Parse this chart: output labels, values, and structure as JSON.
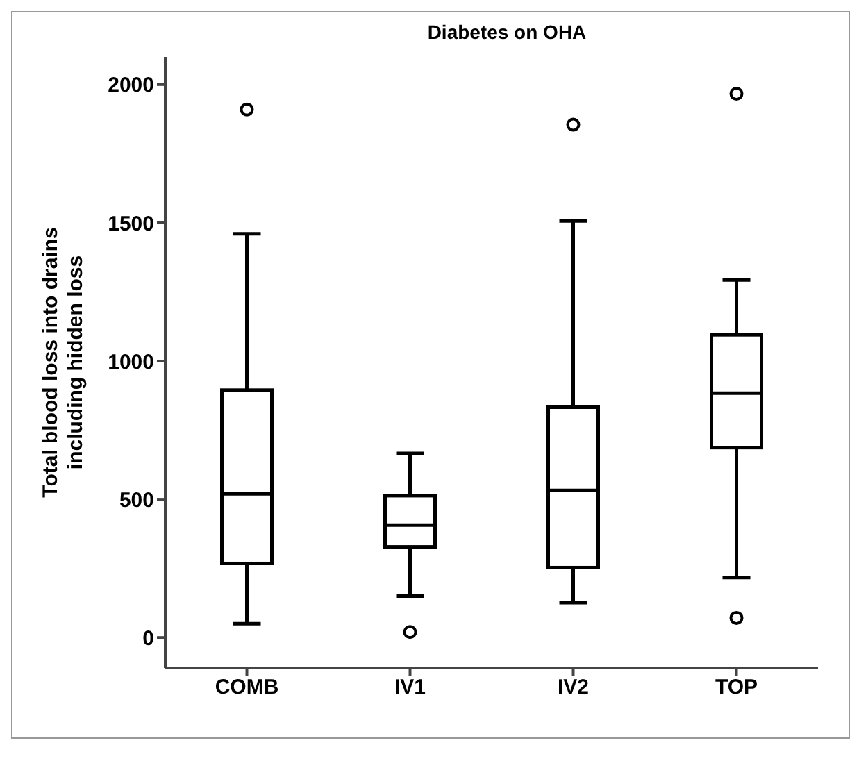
{
  "chart_data": {
    "type": "box",
    "title": "Diabetes on OHA",
    "ylabel": "Total blood loss into drains including hidden loss",
    "categories": [
      "COMB",
      "IV1",
      "IV2",
      "TOP"
    ],
    "boxes": [
      {
        "low": 50,
        "q1": 268,
        "median": 520,
        "q3": 895,
        "high": 1460,
        "outliers": [
          1910
        ]
      },
      {
        "low": 150,
        "q1": 328,
        "median": 407,
        "q3": 513,
        "high": 666,
        "outliers": [
          20
        ]
      },
      {
        "low": 126,
        "q1": 253,
        "median": 532,
        "q3": 833,
        "high": 1507,
        "outliers": [
          1855
        ]
      },
      {
        "low": 217,
        "q1": 687,
        "median": 884,
        "q3": 1095,
        "high": 1293,
        "outliers": [
          1967,
          71
        ]
      }
    ],
    "ylim": [
      -110,
      2100
    ],
    "yticks": [
      0,
      500,
      1000,
      1500,
      2000
    ]
  }
}
